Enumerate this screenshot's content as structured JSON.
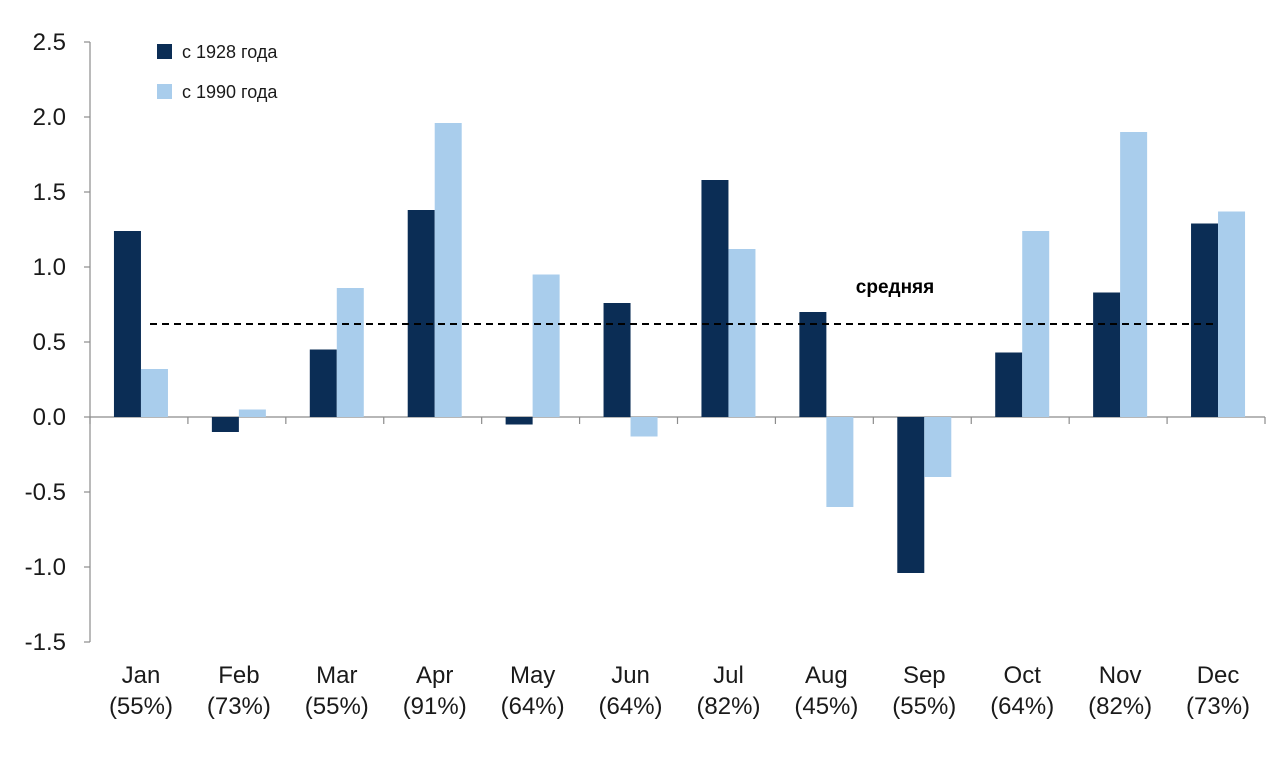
{
  "chart_data": {
    "type": "bar",
    "categories": [
      "Jan",
      "Feb",
      "Mar",
      "Apr",
      "May",
      "Jun",
      "Jul",
      "Aug",
      "Sep",
      "Oct",
      "Nov",
      "Dec"
    ],
    "category_sublabels": [
      "(55%)",
      "(73%)",
      "(55%)",
      "(91%)",
      "(64%)",
      "(64%)",
      "(82%)",
      "(45%)",
      "(55%)",
      "(64%)",
      "(82%)",
      "(73%)"
    ],
    "series": [
      {
        "name": "с 1928 года",
        "color": "#0b2d55",
        "values": [
          1.24,
          -0.1,
          0.45,
          1.38,
          -0.05,
          0.76,
          1.58,
          0.7,
          -1.04,
          0.43,
          0.83,
          1.29
        ]
      },
      {
        "name": "с 1990 года",
        "color": "#a9cdec",
        "values": [
          0.32,
          0.05,
          0.86,
          1.96,
          0.95,
          -0.13,
          1.12,
          -0.6,
          -0.4,
          1.24,
          1.9,
          1.37
        ]
      }
    ],
    "reference_line": {
      "label": "средняя",
      "value": 0.62,
      "style": "dashed"
    },
    "y_ticks": [
      "2.5",
      "2.0",
      "1.5",
      "1.0",
      "0.5",
      "0.0",
      "-0.5",
      "-1.0",
      "-1.5"
    ],
    "ylim": [
      -1.5,
      2.5
    ],
    "grid": false,
    "legend_position": "top-left"
  }
}
